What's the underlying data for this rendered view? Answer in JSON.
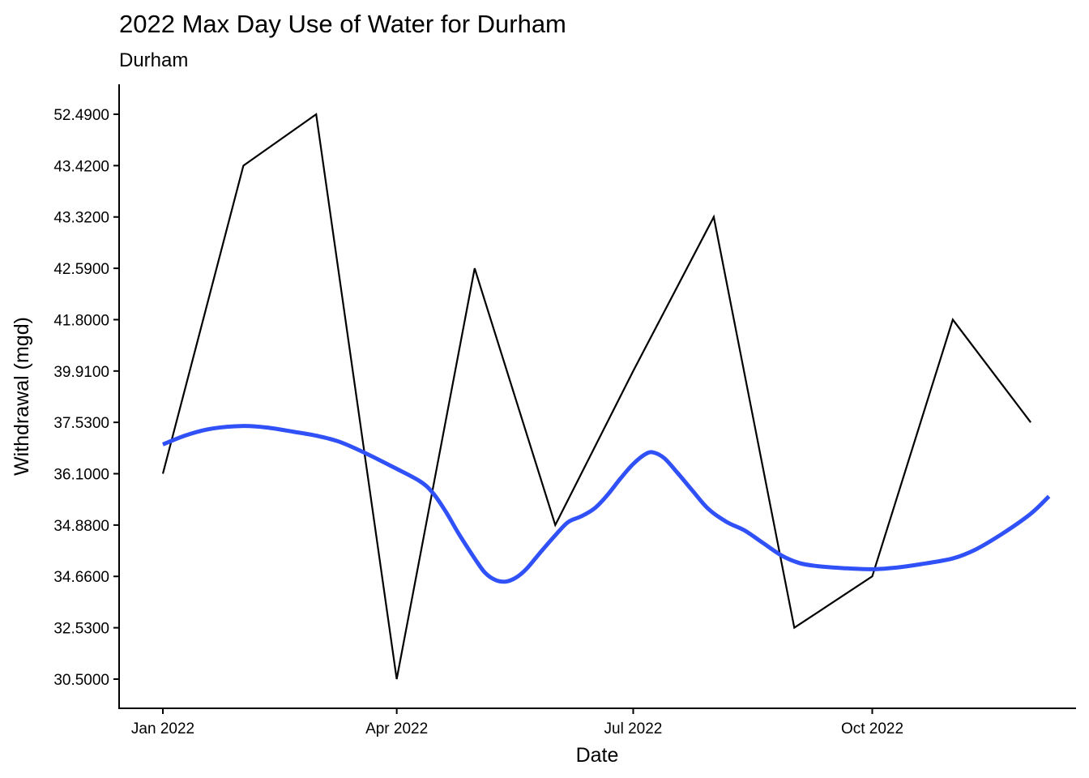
{
  "chart_data": {
    "type": "line",
    "title": "2022 Max Day Use of Water for Durham",
    "subtitle": "Durham",
    "xlabel": "Date",
    "ylabel": "Withdrawal (mgd)",
    "x_ticks": [
      "Jan 2022",
      "Apr 2022",
      "Jul 2022",
      "Oct 2022"
    ],
    "y_categories": [
      "30.5000",
      "32.5300",
      "34.6600",
      "34.8800",
      "36.1000",
      "37.5300",
      "39.9100",
      "41.8000",
      "42.5900",
      "43.3200",
      "43.4200",
      "52.4900"
    ],
    "x": [
      "2022-01-01",
      "2022-02-01",
      "2022-03-01",
      "2022-04-01",
      "2022-05-01",
      "2022-06-01",
      "2022-07-01",
      "2022-08-01",
      "2022-09-01",
      "2022-10-01",
      "2022-11-01",
      "2022-12-01"
    ],
    "series": [
      {
        "values": [
          "36.1000",
          "43.4200",
          "52.4900",
          "30.5000",
          "42.5900",
          "34.8800",
          "39.9100",
          "43.3200",
          "32.5300",
          "34.6600",
          "41.8000",
          "37.5300"
        ],
        "color": "#000000"
      },
      {
        "type": "smooth",
        "color": "#3050f8",
        "points": [
          [
            "2022-01-01",
            4.57
          ],
          [
            "2022-01-10",
            4.75
          ],
          [
            "2022-01-20",
            4.88
          ],
          [
            "2022-02-01",
            4.93
          ],
          [
            "2022-02-10",
            4.9
          ],
          [
            "2022-02-20",
            4.82
          ],
          [
            "2022-03-01",
            4.74
          ],
          [
            "2022-03-10",
            4.62
          ],
          [
            "2022-03-20",
            4.4
          ],
          [
            "2022-03-31",
            4.12
          ],
          [
            "2022-04-10",
            3.85
          ],
          [
            "2022-04-15",
            3.62
          ],
          [
            "2022-04-20",
            3.25
          ],
          [
            "2022-04-25",
            2.82
          ],
          [
            "2022-05-01",
            2.35
          ],
          [
            "2022-05-05",
            2.07
          ],
          [
            "2022-05-09",
            1.93
          ],
          [
            "2022-05-13",
            1.9
          ],
          [
            "2022-05-17",
            1.98
          ],
          [
            "2022-05-21",
            2.15
          ],
          [
            "2022-05-26",
            2.45
          ],
          [
            "2022-06-01",
            2.8
          ],
          [
            "2022-06-06",
            3.06
          ],
          [
            "2022-06-11",
            3.17
          ],
          [
            "2022-06-16",
            3.32
          ],
          [
            "2022-06-21",
            3.58
          ],
          [
            "2022-06-26",
            3.9
          ],
          [
            "2022-07-01",
            4.19
          ],
          [
            "2022-07-06",
            4.39
          ],
          [
            "2022-07-09",
            4.41
          ],
          [
            "2022-07-13",
            4.3
          ],
          [
            "2022-07-18",
            4.02
          ],
          [
            "2022-07-24",
            3.66
          ],
          [
            "2022-07-30",
            3.31
          ],
          [
            "2022-08-06",
            3.06
          ],
          [
            "2022-08-13",
            2.89
          ],
          [
            "2022-08-20",
            2.65
          ],
          [
            "2022-08-27",
            2.41
          ],
          [
            "2022-09-03",
            2.26
          ],
          [
            "2022-09-10",
            2.2
          ],
          [
            "2022-09-20",
            2.16
          ],
          [
            "2022-10-01",
            2.14
          ],
          [
            "2022-10-10",
            2.17
          ],
          [
            "2022-10-20",
            2.24
          ],
          [
            "2022-11-01",
            2.35
          ],
          [
            "2022-11-10",
            2.53
          ],
          [
            "2022-11-20",
            2.83
          ],
          [
            "2022-12-01",
            3.22
          ],
          [
            "2022-12-08",
            3.56
          ]
        ]
      }
    ]
  }
}
